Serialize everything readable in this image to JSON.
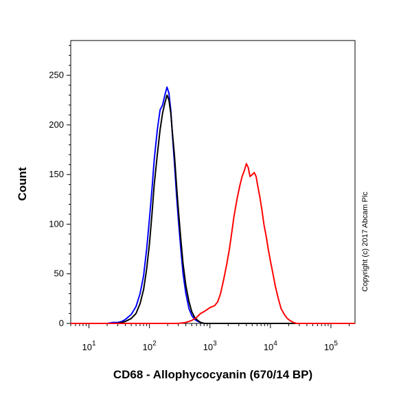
{
  "chart_data": {
    "type": "line",
    "title": "",
    "xlabel": "CD68 - Allophycocyanin (670/14 BP)",
    "ylabel": "Count",
    "x_scale": "log",
    "xlim": [
      5,
      250000
    ],
    "ylim": [
      0,
      285
    ],
    "y_ticks": [
      0,
      50,
      100,
      150,
      200,
      250
    ],
    "x_ticks": [
      {
        "value": 10,
        "base": "10",
        "exp": "1"
      },
      {
        "value": 100,
        "base": "10",
        "exp": "2"
      },
      {
        "value": 1000,
        "base": "10",
        "exp": "3"
      },
      {
        "value": 10000,
        "base": "10",
        "exp": "4"
      },
      {
        "value": 100000,
        "base": "10",
        "exp": "5"
      }
    ],
    "grid": false,
    "legend": "none",
    "series": [
      {
        "color": "#0000ff",
        "x": [
          5,
          10,
          15,
          20,
          25,
          30,
          35,
          40,
          50,
          60,
          70,
          80,
          90,
          100,
          110,
          120,
          135,
          150,
          165,
          180,
          195,
          210,
          225,
          240,
          260,
          280,
          300,
          330,
          360,
          400,
          450,
          500,
          560,
          630,
          700,
          800,
          900,
          1000,
          1200,
          1500,
          2000,
          5000,
          250000
        ],
        "y": [
          0,
          0,
          0,
          0,
          1,
          1,
          2,
          4,
          9,
          17,
          30,
          48,
          75,
          105,
          135,
          165,
          195,
          215,
          220,
          230,
          238,
          232,
          215,
          190,
          160,
          130,
          105,
          75,
          50,
          30,
          15,
          8,
          4,
          2,
          1,
          0,
          0,
          0,
          0,
          0,
          0,
          0,
          0
        ]
      },
      {
        "color": "#000000",
        "x": [
          5,
          10,
          15,
          20,
          30,
          40,
          50,
          60,
          70,
          80,
          90,
          100,
          110,
          120,
          135,
          150,
          165,
          180,
          195,
          210,
          225,
          240,
          260,
          280,
          300,
          330,
          360,
          400,
          450,
          500,
          560,
          630,
          700,
          800,
          900,
          1000,
          1200,
          1500,
          2000,
          5000,
          250000
        ],
        "y": [
          0,
          0,
          0,
          0,
          0,
          2,
          5,
          10,
          20,
          34,
          55,
          80,
          110,
          140,
          170,
          195,
          212,
          222,
          230,
          225,
          212,
          192,
          168,
          140,
          115,
          85,
          60,
          38,
          22,
          12,
          6,
          3,
          1,
          0,
          0,
          0,
          0,
          0,
          0,
          0,
          0
        ]
      },
      {
        "color": "#ff0000",
        "x": [
          5,
          200,
          300,
          400,
          500,
          600,
          700,
          800,
          900,
          1000,
          1100,
          1200,
          1350,
          1500,
          1700,
          1900,
          2100,
          2300,
          2500,
          2800,
          3100,
          3400,
          3700,
          4000,
          4300,
          4600,
          5000,
          5400,
          5800,
          6200,
          6700,
          7200,
          7800,
          8500,
          9200,
          10000,
          11000,
          12000,
          13500,
          15000,
          17000,
          19000,
          21000,
          24000,
          27000,
          30000,
          40000,
          250000
        ],
        "y": [
          0,
          0,
          0,
          1,
          3,
          6,
          10,
          12,
          14,
          16,
          17,
          18,
          22,
          30,
          45,
          60,
          75,
          92,
          108,
          125,
          138,
          148,
          154,
          161,
          157,
          148,
          150,
          152,
          148,
          138,
          127,
          115,
          100,
          88,
          75,
          63,
          50,
          38,
          25,
          15,
          9,
          5,
          3,
          1,
          0,
          0,
          0,
          0
        ]
      }
    ],
    "annotations": [
      "Copyright (c) 2017 Abcam Plc"
    ]
  }
}
